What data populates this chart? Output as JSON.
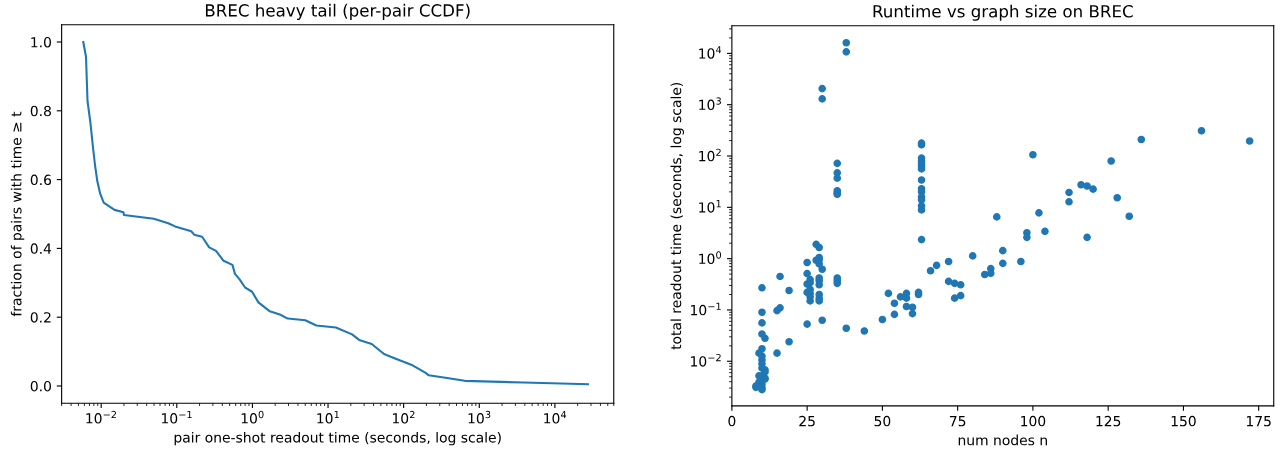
{
  "chart_data": [
    {
      "type": "line",
      "title": "BREC heavy tail (per-pair CCDF)",
      "xlabel": "pair one-shot readout time (seconds, log scale)",
      "ylabel": "fraction of pairs with time ≥ t",
      "log": "x",
      "color": "#1f77b4",
      "x": [
        0.0058,
        0.0063,
        0.0066,
        0.0072,
        0.0078,
        0.0083,
        0.0089,
        0.0097,
        0.0108,
        0.015,
        0.0197,
        0.02,
        0.0497,
        0.077,
        0.095,
        0.155,
        0.17,
        0.216,
        0.268,
        0.33,
        0.415,
        0.544,
        0.588,
        0.677,
        0.795,
        0.99,
        1.2,
        1.7,
        2.35,
        2.93,
        5.0,
        7.0,
        12.7,
        20.8,
        25.8,
        37.8,
        55,
        77,
        126,
        193,
        215,
        414,
        641,
        3860,
        27300
      ],
      "values": [
        1.0,
        0.957,
        0.828,
        0.766,
        0.693,
        0.641,
        0.595,
        0.559,
        0.533,
        0.512,
        0.505,
        0.497,
        0.486,
        0.473,
        0.464,
        0.45,
        0.44,
        0.434,
        0.403,
        0.393,
        0.364,
        0.352,
        0.326,
        0.31,
        0.287,
        0.274,
        0.243,
        0.217,
        0.207,
        0.196,
        0.191,
        0.176,
        0.17,
        0.15,
        0.134,
        0.122,
        0.093,
        0.08,
        0.062,
        0.039,
        0.031,
        0.022,
        0.015,
        0.01,
        0.005
      ],
      "xlim": [
        0.003,
        60000
      ],
      "ylim": [
        -0.05,
        1.05
      ],
      "xticks": [
        {
          "value": 0.01,
          "label": "10$^{−2}$"
        },
        {
          "value": 0.1,
          "label": "10$^{−1}$"
        },
        {
          "value": 1,
          "label": "10$^{0}$"
        },
        {
          "value": 10,
          "label": "10$^{1}$"
        },
        {
          "value": 100,
          "label": "10$^{2}$"
        },
        {
          "value": 1000,
          "label": "10$^{3}$"
        },
        {
          "value": 10000,
          "label": "10$^{4}$"
        }
      ],
      "yticks": [
        {
          "value": 0.0,
          "label": "0.0"
        },
        {
          "value": 0.2,
          "label": "0.2"
        },
        {
          "value": 0.4,
          "label": "0.4"
        },
        {
          "value": 0.6,
          "label": "0.6"
        },
        {
          "value": 0.8,
          "label": "0.8"
        },
        {
          "value": 1.0,
          "label": "1.0"
        }
      ]
    },
    {
      "type": "scatter",
      "title": "Runtime vs graph size on BREC",
      "xlabel": "num nodes n",
      "ylabel": "total readout time (seconds, log scale)",
      "log": "y",
      "marker": "circle",
      "color": "#1f77b4",
      "x": [
        30,
        30,
        38,
        38,
        35,
        35,
        35,
        35,
        35,
        35,
        63,
        63,
        63,
        63,
        63,
        63,
        63,
        63,
        63,
        63,
        63,
        63,
        63,
        63,
        63,
        100,
        88,
        102,
        104,
        98,
        98,
        112,
        112,
        116,
        118,
        120,
        126,
        128,
        132,
        136,
        156,
        172,
        118,
        90,
        90,
        96,
        80,
        72,
        68,
        66,
        72,
        74,
        76,
        74,
        76,
        84,
        86,
        86,
        62,
        62,
        58,
        58,
        58,
        56,
        54,
        54,
        52,
        60,
        60,
        50,
        44,
        38,
        30,
        28,
        29,
        29,
        29,
        28,
        30,
        29,
        29,
        29,
        29,
        29,
        29,
        29,
        25,
        25,
        25,
        26,
        26,
        26,
        26,
        26,
        26,
        25,
        25,
        35,
        35,
        35,
        16,
        19,
        16,
        15,
        19,
        15,
        10,
        10,
        10,
        10,
        11,
        10,
        9,
        10,
        10,
        10,
        10,
        11,
        11,
        10,
        9,
        11,
        9,
        10,
        8,
        8,
        10,
        10,
        11
      ],
      "values": [
        2060,
        1300,
        16100,
        10700,
        72,
        47,
        37,
        21,
        19,
        18,
        178,
        166,
        91,
        79,
        70,
        63,
        56,
        34,
        23,
        20,
        16,
        14,
        10.7,
        8.9,
        2.35,
        106,
        6.5,
        7.8,
        3.4,
        3.2,
        2.6,
        19.5,
        12.8,
        27.5,
        26,
        22.6,
        80,
        15.4,
        6.7,
        210,
        310,
        196,
        2.6,
        1.43,
        0.81,
        0.88,
        1.13,
        0.88,
        0.74,
        0.58,
        0.36,
        0.33,
        0.31,
        0.17,
        0.19,
        0.49,
        0.64,
        0.52,
        0.22,
        0.2,
        0.21,
        0.17,
        0.117,
        0.18,
        0.135,
        0.082,
        0.21,
        0.113,
        0.085,
        0.065,
        0.039,
        0.044,
        0.063,
        1.9,
        1.65,
        1.05,
        0.95,
        0.93,
        0.62,
        0.79,
        0.42,
        0.37,
        0.31,
        0.2,
        0.17,
        0.15,
        0.84,
        0.51,
        0.32,
        0.34,
        0.39,
        0.25,
        0.21,
        0.18,
        0.15,
        0.22,
        0.053,
        0.42,
        0.37,
        0.33,
        0.45,
        0.24,
        0.11,
        0.097,
        0.024,
        0.0144,
        0.27,
        0.09,
        0.056,
        0.034,
        0.028,
        0.0175,
        0.0144,
        0.0126,
        0.0106,
        0.0089,
        0.0074,
        0.0068,
        0.0062,
        0.0052,
        0.0052,
        0.0047,
        0.0039,
        0.0036,
        0.0033,
        0.0031,
        0.0031,
        0.0028,
        0.0045
      ],
      "xlim": [
        0,
        180
      ],
      "ylim": [
        0.00135,
        34600
      ],
      "xticks": [
        0,
        25,
        50,
        75,
        100,
        125,
        150,
        175
      ],
      "yticks": [
        {
          "value": 0.01,
          "label": "10$^{−2}$"
        },
        {
          "value": 0.1,
          "label": "10$^{−1}$"
        },
        {
          "value": 1,
          "label": "10$^{0}$"
        },
        {
          "value": 10,
          "label": "10$^{1}$"
        },
        {
          "value": 100,
          "label": "10$^{2}$"
        },
        {
          "value": 1000,
          "label": "10$^{3}$"
        },
        {
          "value": 10000,
          "label": "10$^{4}$"
        }
      ]
    }
  ]
}
